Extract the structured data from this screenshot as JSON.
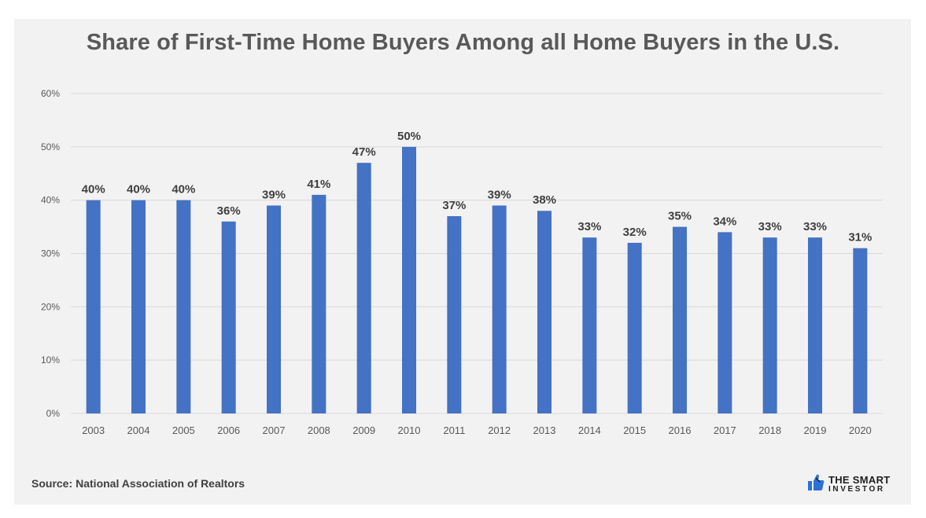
{
  "title": "Share of First-Time Home Buyers Among all Home Buyers in the U.S.",
  "source": {
    "label": "Source:",
    "text": "National Association of Realtors"
  },
  "brand": {
    "line1": "THE SMART",
    "line2": "INVESTOR",
    "logo_icon": "thumbs-up-icon",
    "logo_color": "#2e6fd8"
  },
  "colors": {
    "bar": "#4472c4",
    "grid": "#d9d9d9",
    "axis_text": "#595959",
    "label_text": "#404040",
    "background": "#f2f2f2"
  },
  "chart_data": {
    "type": "bar",
    "title": "Share of First-Time Home Buyers Among all Home Buyers in the U.S.",
    "xlabel": "",
    "ylabel": "",
    "categories": [
      "2003",
      "2004",
      "2005",
      "2006",
      "2007",
      "2008",
      "2009",
      "2010",
      "2011",
      "2012",
      "2013",
      "2014",
      "2015",
      "2016",
      "2017",
      "2018",
      "2019",
      "2020"
    ],
    "values": [
      40,
      40,
      40,
      36,
      39,
      41,
      47,
      50,
      37,
      39,
      38,
      33,
      32,
      35,
      34,
      33,
      33,
      31
    ],
    "data_labels": [
      "40%",
      "40%",
      "40%",
      "36%",
      "39%",
      "41%",
      "47%",
      "50%",
      "37%",
      "39%",
      "38%",
      "33%",
      "32%",
      "35%",
      "34%",
      "33%",
      "33%",
      "31%"
    ],
    "ylim": [
      0,
      60
    ],
    "yticks": [
      "0%",
      "10%",
      "20%",
      "30%",
      "40%",
      "50%",
      "60%"
    ],
    "grid": true,
    "legend": "none"
  }
}
